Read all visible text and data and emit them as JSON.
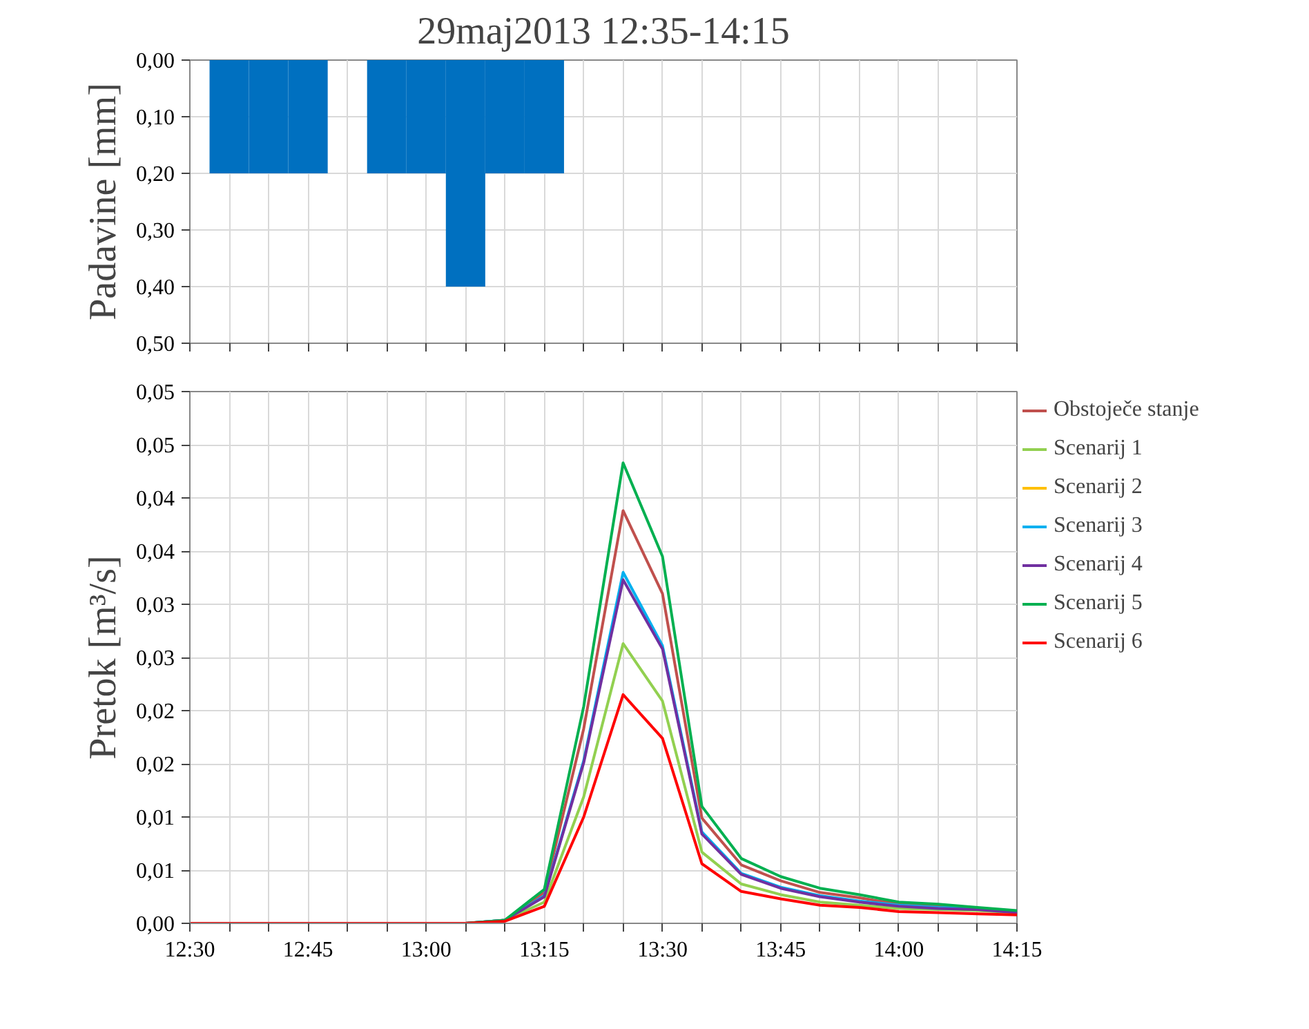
{
  "chart_data": [
    {
      "type": "bar",
      "title": "29maj2013 12:35-14:15",
      "ylabel": "Padavine [mm]",
      "x": [
        "2013-05-29T12:35",
        "2013-05-29T12:40",
        "2013-05-29T12:45",
        "2013-05-29T12:50",
        "2013-05-29T12:55",
        "2013-05-29T13:00",
        "2013-05-29T13:05",
        "2013-05-29T13:10",
        "2013-05-29T13:15"
      ],
      "values": [
        0.2,
        0.2,
        0.2,
        0,
        0.2,
        0.2,
        0.4,
        0.2,
        0.2
      ],
      "color": "#0070c0",
      "xlim": [
        "2013-05-29T12:30",
        "2013-05-29T14:15"
      ],
      "xticks": [
        {
          "value": "2013-05-29T12:30",
          "label": null
        },
        {
          "value": "2013-05-29T12:35",
          "label": null
        },
        {
          "value": "2013-05-29T12:40",
          "label": null
        },
        {
          "value": "2013-05-29T12:45",
          "label": null
        },
        {
          "value": "2013-05-29T12:50",
          "label": null
        },
        {
          "value": "2013-05-29T12:55",
          "label": null
        },
        {
          "value": "2013-05-29T13:00",
          "label": null
        },
        {
          "value": "2013-05-29T13:05",
          "label": null
        },
        {
          "value": "2013-05-29T13:10",
          "label": null
        },
        {
          "value": "2013-05-29T13:15",
          "label": null
        },
        {
          "value": "2013-05-29T13:20",
          "label": null
        },
        {
          "value": "2013-05-29T13:25",
          "label": null
        },
        {
          "value": "2013-05-29T13:30",
          "label": null
        },
        {
          "value": "2013-05-29T13:35",
          "label": null
        },
        {
          "value": "2013-05-29T13:40",
          "label": null
        },
        {
          "value": "2013-05-29T13:45",
          "label": null
        },
        {
          "value": "2013-05-29T13:50",
          "label": null
        },
        {
          "value": "2013-05-29T13:55",
          "label": null
        },
        {
          "value": "2013-05-29T14:00",
          "label": null
        },
        {
          "value": "2013-05-29T14:05",
          "label": null
        },
        {
          "value": "2013-05-29T14:10",
          "label": null
        },
        {
          "value": "2013-05-29T14:15",
          "label": null
        }
      ],
      "ylim": [
        0.5,
        0
      ],
      "yticks": [
        {
          "value": 0,
          "label": "0,00"
        },
        {
          "value": 0.1,
          "label": "0,10"
        },
        {
          "value": 0.2,
          "label": "0,20"
        },
        {
          "value": 0.3,
          "label": "0,30"
        },
        {
          "value": 0.4,
          "label": "0,40"
        },
        {
          "value": 0.5,
          "label": "0,50"
        }
      ],
      "tick_labels": "y",
      "grid": true,
      "legend": false
    },
    {
      "type": "line",
      "ylabel": "Pretok [m³/s]",
      "x": [
        "2013-05-29T12:30",
        "2013-05-29T12:35",
        "2013-05-29T12:40",
        "2013-05-29T12:45",
        "2013-05-29T12:50",
        "2013-05-29T12:55",
        "2013-05-29T13:00",
        "2013-05-29T13:05",
        "2013-05-29T13:10",
        "2013-05-29T13:15",
        "2013-05-29T13:20",
        "2013-05-29T13:25",
        "2013-05-29T13:30",
        "2013-05-29T13:35",
        "2013-05-29T13:40",
        "2013-05-29T13:45",
        "2013-05-29T13:50",
        "2013-05-29T13:55",
        "2013-05-29T14:00",
        "2013-05-29T14:05",
        "2013-05-29T14:10",
        "2013-05-29T14:15"
      ],
      "series": [
        {
          "name": "Obstoječe stanje",
          "color": "#c0504d",
          "values": [
            null,
            null,
            null,
            null,
            null,
            null,
            null,
            0,
            0.0003,
            0.0029,
            0.0183,
            0.0388,
            0.031,
            0.0099,
            0.0055,
            0.004,
            0.0029,
            0.0024,
            0.0018,
            0.0016,
            0.0014,
            0.0011
          ]
        },
        {
          "name": "Scenarij 1",
          "color": "#92d050",
          "values": [
            null,
            null,
            null,
            null,
            null,
            null,
            null,
            0,
            0.0003,
            0.002,
            0.0119,
            0.0263,
            0.0209,
            0.0067,
            0.0037,
            0.0027,
            0.002,
            0.0017,
            0.0014,
            0.0013,
            0.0012,
            0.001
          ]
        },
        {
          "name": "Scenarij 2",
          "color": "#ffc000",
          "values": [
            null,
            null,
            null,
            null,
            null,
            null,
            null,
            null,
            null,
            null,
            null,
            null,
            null,
            null,
            null,
            null,
            null,
            null,
            null,
            null,
            null,
            null
          ]
        },
        {
          "name": "Scenarij 3",
          "color": "#00b0f0",
          "values": [
            null,
            null,
            null,
            null,
            null,
            null,
            null,
            0,
            0.0003,
            0.0026,
            0.0153,
            0.033,
            0.0261,
            0.0086,
            0.0047,
            0.0034,
            0.0026,
            0.0021,
            0.0017,
            0.0015,
            0.0014,
            0.0011
          ]
        },
        {
          "name": "Scenarij 4",
          "color": "#7030a0",
          "values": [
            null,
            null,
            null,
            null,
            null,
            null,
            null,
            0,
            0.0003,
            0.0025,
            0.0151,
            0.0323,
            0.0258,
            0.0084,
            0.0046,
            0.0033,
            0.0025,
            0.002,
            0.0016,
            0.0014,
            0.0013,
            0.001
          ]
        },
        {
          "name": "Scenarij 5",
          "color": "#00b050",
          "values": [
            null,
            null,
            null,
            null,
            null,
            null,
            null,
            0,
            0.0003,
            0.0032,
            0.0204,
            0.0433,
            0.0345,
            0.011,
            0.0061,
            0.0044,
            0.0033,
            0.0027,
            0.002,
            0.0018,
            0.0015,
            0.0012
          ]
        },
        {
          "name": "Scenarij 6",
          "color": "#ff0000",
          "values": [
            0,
            0,
            0,
            0,
            0,
            0,
            0,
            0,
            0.0002,
            0.0016,
            0.01,
            0.0215,
            0.0174,
            0.0056,
            0.003,
            0.0023,
            0.0017,
            0.0015,
            0.0011,
            0.001,
            0.0009,
            0.0008
          ]
        }
      ],
      "xlim": [
        "2013-05-29T12:30",
        "2013-05-29T14:15"
      ],
      "xticks": [
        {
          "value": "2013-05-29T12:30",
          "label": "12:30"
        },
        {
          "value": "2013-05-29T12:35",
          "label": null
        },
        {
          "value": "2013-05-29T12:40",
          "label": null
        },
        {
          "value": "2013-05-29T12:45",
          "label": "12:45"
        },
        {
          "value": "2013-05-29T12:50",
          "label": null
        },
        {
          "value": "2013-05-29T12:55",
          "label": null
        },
        {
          "value": "2013-05-29T13:00",
          "label": "13:00"
        },
        {
          "value": "2013-05-29T13:05",
          "label": null
        },
        {
          "value": "2013-05-29T13:10",
          "label": null
        },
        {
          "value": "2013-05-29T13:15",
          "label": "13:15"
        },
        {
          "value": "2013-05-29T13:20",
          "label": null
        },
        {
          "value": "2013-05-29T13:25",
          "label": null
        },
        {
          "value": "2013-05-29T13:30",
          "label": "13:30"
        },
        {
          "value": "2013-05-29T13:35",
          "label": null
        },
        {
          "value": "2013-05-29T13:40",
          "label": null
        },
        {
          "value": "2013-05-29T13:45",
          "label": "13:45"
        },
        {
          "value": "2013-05-29T13:50",
          "label": null
        },
        {
          "value": "2013-05-29T13:55",
          "label": null
        },
        {
          "value": "2013-05-29T14:00",
          "label": "14:00"
        },
        {
          "value": "2013-05-29T14:05",
          "label": null
        },
        {
          "value": "2013-05-29T14:10",
          "label": null
        },
        {
          "value": "2013-05-29T14:15",
          "label": "14:15"
        }
      ],
      "ylim": [
        0,
        0.05
      ],
      "yticks": [
        {
          "value": 0,
          "label": "0,00"
        },
        {
          "value": 0.005,
          "label": "0,01"
        },
        {
          "value": 0.01,
          "label": "0,01"
        },
        {
          "value": 0.015,
          "label": "0,02"
        },
        {
          "value": 0.02,
          "label": "0,02"
        },
        {
          "value": 0.025,
          "label": "0,03"
        },
        {
          "value": 0.03,
          "label": "0,03"
        },
        {
          "value": 0.035,
          "label": "0,04"
        },
        {
          "value": 0.04,
          "label": "0,04"
        },
        {
          "value": 0.045,
          "label": "0,05"
        },
        {
          "value": 0.05,
          "label": "0,05"
        }
      ],
      "grid": true,
      "legend": "right",
      "line_style": "solid",
      "marker": "none"
    }
  ]
}
